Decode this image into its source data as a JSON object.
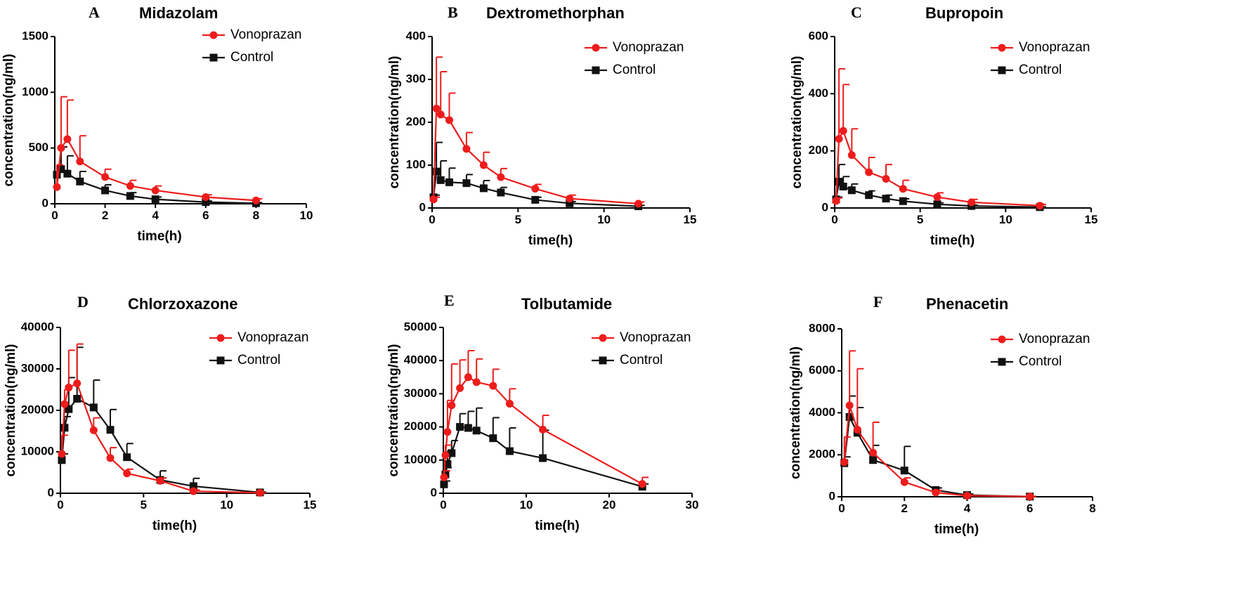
{
  "colors": {
    "treatment": "#ee1c1c",
    "control": "#111111",
    "axis": "#000000"
  },
  "chart_data": [
    {
      "id": "A",
      "type": "line",
      "title": "Midazolam",
      "xlabel": "time(h)",
      "ylabel": "concentration(ng/ml)",
      "xlim": [
        0,
        10
      ],
      "ylim": [
        0,
        1500
      ],
      "xticks": [
        0,
        2,
        4,
        6,
        8,
        10
      ],
      "yticks": [
        0,
        500,
        1000,
        1500
      ],
      "legend": [
        "Vonoprazan",
        "Control"
      ],
      "series": [
        {
          "name": "Vonoprazan",
          "x": [
            0.083,
            0.25,
            0.5,
            1,
            2,
            3,
            4,
            6,
            8
          ],
          "y": [
            150,
            500,
            580,
            380,
            240,
            160,
            120,
            60,
            30
          ],
          "err": [
            200,
            460,
            350,
            230,
            70,
            50,
            40,
            20,
            15
          ]
        },
        {
          "name": "Control",
          "x": [
            0.083,
            0.25,
            0.5,
            1,
            2,
            3,
            4,
            6,
            8
          ],
          "y": [
            260,
            310,
            270,
            200,
            120,
            70,
            40,
            15,
            5
          ],
          "err": [
            40,
            200,
            160,
            90,
            50,
            30,
            20,
            10,
            5
          ]
        }
      ]
    },
    {
      "id": "B",
      "type": "line",
      "title": "Dextromethorphan",
      "xlabel": "time(h)",
      "ylabel": "concentration(ng/ml)",
      "xlim": [
        0,
        15
      ],
      "ylim": [
        0,
        400
      ],
      "xticks": [
        0,
        5,
        10,
        15
      ],
      "yticks": [
        0,
        100,
        200,
        300,
        400
      ],
      "legend": [
        "Vonoprazan",
        "Control"
      ],
      "series": [
        {
          "name": "Vonoprazan",
          "x": [
            0.083,
            0.25,
            0.5,
            1,
            2,
            3,
            4,
            6,
            8,
            12
          ],
          "y": [
            20,
            232,
            218,
            205,
            138,
            100,
            72,
            45,
            22,
            10
          ],
          "err": [
            5,
            120,
            100,
            63,
            38,
            30,
            20,
            10,
            8,
            4
          ]
        },
        {
          "name": "Control",
          "x": [
            0.083,
            0.25,
            0.5,
            1,
            2,
            3,
            4,
            6,
            8,
            12
          ],
          "y": [
            25,
            85,
            65,
            60,
            58,
            46,
            36,
            19,
            11,
            4
          ],
          "err": [
            5,
            68,
            45,
            33,
            20,
            18,
            12,
            6,
            4,
            2
          ]
        }
      ]
    },
    {
      "id": "C",
      "type": "line",
      "title": "Bupropoin",
      "xlabel": "time(h)",
      "ylabel": "concentration(ng/ml)",
      "xlim": [
        0,
        15
      ],
      "ylim": [
        0,
        600
      ],
      "xticks": [
        0,
        5,
        10,
        15
      ],
      "yticks": [
        0,
        200,
        400,
        600
      ],
      "legend": [
        "Vonoprazan",
        "Control"
      ],
      "series": [
        {
          "name": "Vonoprazan",
          "x": [
            0.083,
            0.25,
            0.5,
            1,
            2,
            3,
            4,
            6,
            8,
            12
          ],
          "y": [
            25,
            242,
            270,
            185,
            125,
            102,
            67,
            38,
            20,
            8
          ],
          "err": [
            10,
            245,
            162,
            92,
            52,
            50,
            30,
            15,
            10,
            4
          ]
        },
        {
          "name": "Control",
          "x": [
            0.083,
            0.25,
            0.5,
            1,
            2,
            3,
            4,
            6,
            8,
            12
          ],
          "y": [
            30,
            92,
            75,
            62,
            45,
            33,
            24,
            13,
            7,
            3
          ],
          "err": [
            8,
            60,
            35,
            22,
            15,
            12,
            8,
            5,
            3,
            1
          ]
        }
      ]
    },
    {
      "id": "D",
      "type": "line",
      "title": "Chlorzoxazone",
      "xlabel": "time(h)",
      "ylabel": "concentration(ng/ml)",
      "xlim": [
        0,
        15
      ],
      "ylim": [
        0,
        40000
      ],
      "xticks": [
        0,
        5,
        10,
        15
      ],
      "yticks": [
        0,
        10000,
        20000,
        30000,
        40000
      ],
      "legend": [
        "Vonoprazan",
        "Control"
      ],
      "series": [
        {
          "name": "Vonoprazan",
          "x": [
            0.083,
            0.25,
            0.5,
            1,
            2,
            3,
            4,
            6,
            8,
            12
          ],
          "y": [
            9500,
            21500,
            25500,
            26500,
            15200,
            8500,
            4800,
            3000,
            500,
            100
          ],
          "err": [
            4500,
            3500,
            9000,
            9500,
            3000,
            2500,
            1000,
            700,
            300,
            50
          ]
        },
        {
          "name": "Control",
          "x": [
            0.083,
            0.25,
            0.5,
            1,
            2,
            3,
            4,
            6,
            8,
            12
          ],
          "y": [
            8000,
            15800,
            20300,
            22800,
            20700,
            15300,
            8700,
            3200,
            1700,
            200
          ],
          "err": [
            1500,
            2700,
            7600,
            12400,
            6600,
            4900,
            3300,
            2200,
            1900,
            100
          ]
        }
      ]
    },
    {
      "id": "E",
      "type": "line",
      "title": "Tolbutamide",
      "xlabel": "time(h)",
      "ylabel": "concentration(ng/ml)",
      "xlim": [
        0,
        30
      ],
      "ylim": [
        0,
        50000
      ],
      "xticks": [
        0,
        10,
        20,
        30
      ],
      "yticks": [
        0,
        10000,
        20000,
        30000,
        40000,
        50000
      ],
      "legend": [
        "Vonoprazan",
        "Control"
      ],
      "series": [
        {
          "name": "Vonoprazan",
          "x": [
            0.083,
            0.25,
            0.5,
            1,
            2,
            3,
            4,
            6,
            8,
            12,
            24
          ],
          "y": [
            4800,
            11500,
            18500,
            26500,
            31700,
            35000,
            33500,
            32400,
            27000,
            19200,
            2800
          ],
          "err": [
            2000,
            3000,
            9500,
            12500,
            8500,
            8000,
            7000,
            5000,
            4500,
            4300,
            2000
          ]
        },
        {
          "name": "Control",
          "x": [
            0.083,
            0.25,
            0.5,
            1,
            2,
            3,
            4,
            6,
            8,
            12,
            24
          ],
          "y": [
            2700,
            5700,
            8800,
            12100,
            20000,
            19700,
            18900,
            16600,
            12700,
            10600,
            2000
          ],
          "err": [
            1000,
            2000,
            4000,
            3800,
            4000,
            5000,
            6800,
            6200,
            7000,
            8400,
            800
          ]
        }
      ]
    },
    {
      "id": "F",
      "type": "line",
      "title": "Phenacetin",
      "xlabel": "time(h)",
      "ylabel": "concentration(ng/ml)",
      "xlim": [
        0,
        8
      ],
      "ylim": [
        0,
        8000
      ],
      "xticks": [
        0,
        2,
        4,
        6,
        8
      ],
      "yticks": [
        0,
        2000,
        4000,
        6000,
        8000
      ],
      "legend": [
        "Vonoprazan",
        "Control"
      ],
      "series": [
        {
          "name": "Vonoprazan",
          "x": [
            0.083,
            0.25,
            0.5,
            1,
            2,
            3,
            4,
            6
          ],
          "y": [
            1650,
            4350,
            3200,
            2100,
            700,
            200,
            50,
            10
          ],
          "err": [
            1200,
            2600,
            2900,
            1450,
            200,
            100,
            30,
            10
          ]
        },
        {
          "name": "Control",
          "x": [
            0.083,
            0.25,
            0.5,
            1,
            2,
            3,
            4,
            6
          ],
          "y": [
            1600,
            3800,
            3050,
            1750,
            1250,
            320,
            80,
            10
          ],
          "err": [
            300,
            1000,
            1200,
            700,
            1150,
            100,
            50,
            10
          ]
        }
      ]
    }
  ]
}
